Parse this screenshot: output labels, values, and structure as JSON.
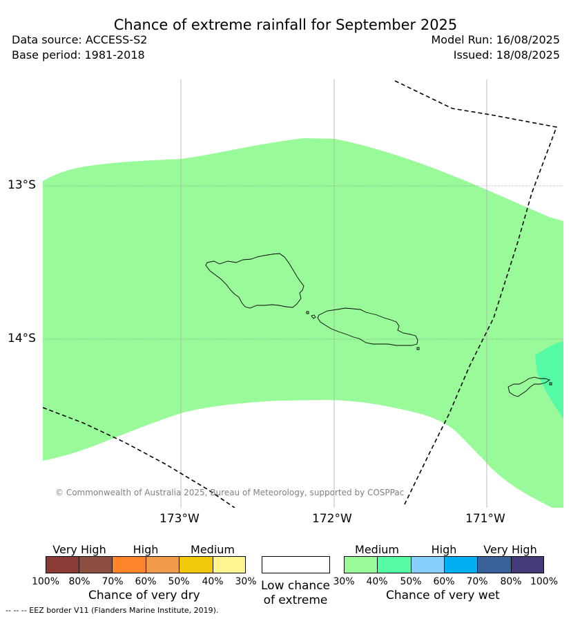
{
  "title": "Chance of extreme rainfall for September 2025",
  "data_source": "Data source: ACCESS-S2",
  "base_period": "Base period: 1981-2018",
  "model_run": "Model Run: 16/08/2025",
  "issued": "Issued: 18/08/2025",
  "map": {
    "lat_labels": [
      "13°S",
      "14°S"
    ],
    "lon_labels": [
      "173°W",
      "172°W",
      "171°W"
    ],
    "copyright": "© Commonwealth of Australia 2025, Bureau of Meteorology, supported by COSPPac",
    "fill_colors": {
      "wet_medium_30_40": "#99fa99",
      "wet_medium_40_50": "#55faa5"
    },
    "features": [
      "samoa-coastline",
      "american-samoa-coastline",
      "eez-border"
    ]
  },
  "legend": {
    "dry": {
      "group_labels": [
        "Very High",
        "High",
        "Medium"
      ],
      "ticks": [
        "100%",
        "80%",
        "70%",
        "60%",
        "50%",
        "40%",
        "30%"
      ],
      "caption": "Chance of very dry",
      "colors": [
        "#8b3a36",
        "#8c4f40",
        "#fd8428",
        "#f09b4a",
        "#f1c90a",
        "#fdf58f"
      ]
    },
    "low": {
      "caption_line1": "Low chance",
      "caption_line2": "of extreme"
    },
    "wet": {
      "group_labels": [
        "Medium",
        "High",
        "Very High"
      ],
      "ticks": [
        "30%",
        "40%",
        "50%",
        "60%",
        "70%",
        "80%",
        "100%"
      ],
      "caption": "Chance of very wet",
      "colors": [
        "#99fa99",
        "#55faa5",
        "#87cefa",
        "#00b0f0",
        "#3a629a",
        "#433a78"
      ]
    }
  },
  "eez_note": "--  --  -- EEZ border V11 (Flanders Marine Institute, 2019)."
}
